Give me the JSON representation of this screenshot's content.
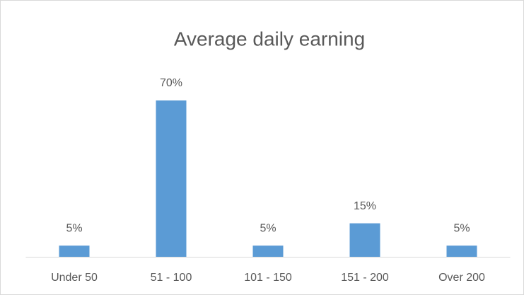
{
  "chart_data": {
    "type": "bar",
    "title": "Average daily earning",
    "categories": [
      "Under 50",
      "51 - 100",
      "101 - 150",
      "151 - 200",
      "Over 200"
    ],
    "values": [
      5,
      70,
      5,
      15,
      5
    ],
    "value_labels": [
      "5%",
      "70%",
      "5%",
      "15%",
      "5%"
    ],
    "color": "#5b9bd5"
  }
}
